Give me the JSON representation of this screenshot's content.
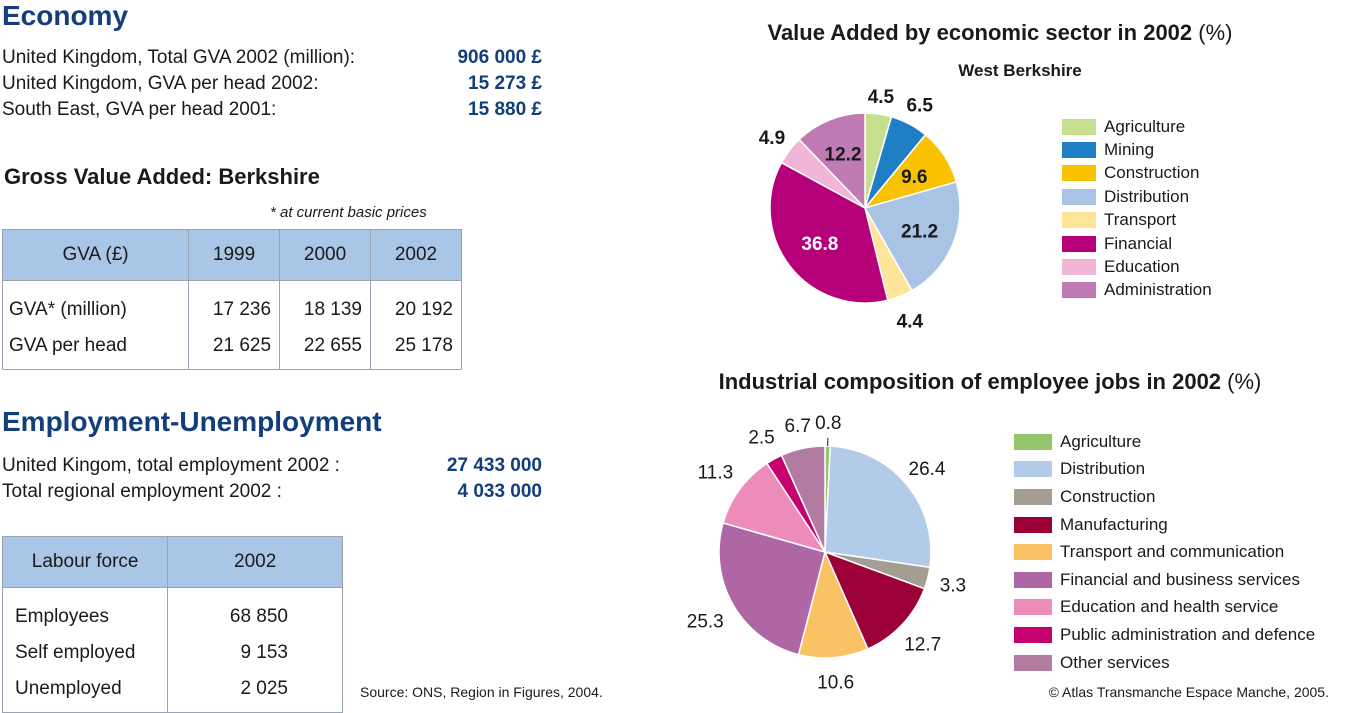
{
  "economy": {
    "title": "Economy",
    "rows": [
      {
        "label": "United Kingdom, Total GVA 2002 (million):",
        "value": "906 000 £"
      },
      {
        "label": "United Kingdom, GVA per head 2002:",
        "value": "15 273 £"
      },
      {
        "label": "South East, GVA per head 2001:",
        "value": "15 880 £"
      }
    ]
  },
  "gva": {
    "title": "Gross Value Added: Berkshire",
    "note": "* at current basic prices",
    "headers": [
      "GVA (£)",
      "1999",
      "2000",
      "2002"
    ],
    "rows": [
      [
        "GVA* (million)",
        "17 236",
        "18 139",
        "20 192"
      ],
      [
        "GVA per head",
        "21 625",
        "22 655",
        "25 178"
      ]
    ]
  },
  "employment": {
    "title": "Employment-Unemployment",
    "rows": [
      {
        "label": "United Kingom, total employment 2002 :",
        "value": "27 433 000"
      },
      {
        "label": "Total regional employment 2002 :",
        "value": "4 033 000"
      }
    ]
  },
  "labour": {
    "headers": [
      "Labour force",
      "2002"
    ],
    "rows": [
      [
        "Employees",
        "68 850"
      ],
      [
        "Self employed",
        "9 153"
      ],
      [
        "Unemployed",
        "2 025"
      ]
    ]
  },
  "source": "Source: ONS, Region in Figures, 2004.",
  "copyright": "© Atlas Transmanche Espace Manche, 2005.",
  "chart_data": [
    {
      "type": "pie",
      "title": "Value Added by economic sector in 2002",
      "title_suffix": "(%)",
      "subtitle": "West Berkshire",
      "legend_position": "right",
      "categories": [
        "Agriculture",
        "Mining",
        "Construction",
        "Distribution",
        "Transport",
        "Financial",
        "Education",
        "Administration"
      ],
      "values": [
        4.5,
        6.5,
        9.6,
        21.2,
        4.4,
        36.8,
        4.9,
        12.2
      ],
      "labels": [
        "4.5",
        "6.5",
        "9.6",
        "21.2",
        "4.4",
        "36.8",
        "4.9",
        "12.2"
      ],
      "colors": [
        "#c6df8f",
        "#1f7fc4",
        "#f9c200",
        "#a9c3e4",
        "#fde59a",
        "#b5007a",
        "#f1b6d6",
        "#c07bb4"
      ]
    },
    {
      "type": "pie",
      "title": "Industrial composition of employee jobs in 2002",
      "title_suffix": "(%)",
      "legend_position": "right",
      "categories": [
        "Agriculture",
        "Distribution",
        "Construction",
        "Manufacturing",
        "Transport and communication",
        "Financial and business services",
        "Education and health service",
        "Public administration and defence",
        "Other services"
      ],
      "values": [
        0.8,
        26.4,
        3.3,
        12.7,
        10.6,
        25.3,
        11.3,
        2.5,
        6.7
      ],
      "labels": [
        "0.8",
        "26.4",
        "3.3",
        "12.7",
        "10.6",
        "25.3",
        "11.3",
        "2.5",
        "6.7"
      ],
      "colors": [
        "#93c56a",
        "#b1cbe9",
        "#a49d92",
        "#9c0038",
        "#f9c264",
        "#ae67a4",
        "#ee8cb9",
        "#c5006f",
        "#b27ca2"
      ]
    }
  ]
}
